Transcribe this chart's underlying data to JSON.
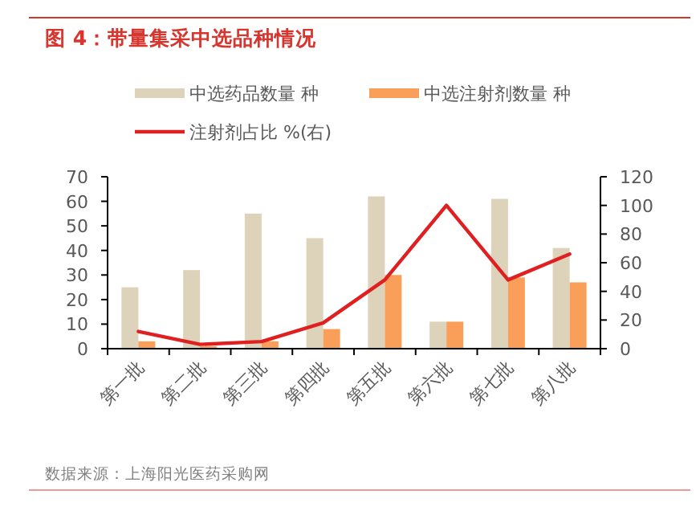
{
  "chart_data": {
    "type": "bar",
    "title": "图 4：带量集采中选品种情况",
    "categories": [
      "第一批",
      "第二批",
      "第三批",
      "第四批",
      "第五批",
      "第六批",
      "第七批",
      "第八批"
    ],
    "series": [
      {
        "name": "中选药品数量 种",
        "color": "#ddd3bb",
        "values": [
          25,
          32,
          55,
          45,
          62,
          11,
          61,
          41
        ]
      },
      {
        "name": "中选注射剂数量 种",
        "color": "#f99f5a",
        "values": [
          3,
          1,
          3,
          8,
          30,
          11,
          29,
          27
        ]
      },
      {
        "name": "注射剂占比 %(右)",
        "color": "#e02020",
        "type": "line",
        "axis": "y2",
        "values": [
          12,
          3,
          5,
          18,
          48,
          100,
          48,
          66
        ]
      }
    ],
    "ylim": [
      0,
      70
    ],
    "yticks": [
      0,
      10,
      20,
      30,
      40,
      50,
      60,
      70
    ],
    "y2lim": [
      0,
      120
    ],
    "y2ticks": [
      0,
      20,
      40,
      60,
      80,
      100,
      120
    ],
    "legend": "top",
    "annotations": [
      "数据来源：上海阳光医药采购网"
    ]
  }
}
